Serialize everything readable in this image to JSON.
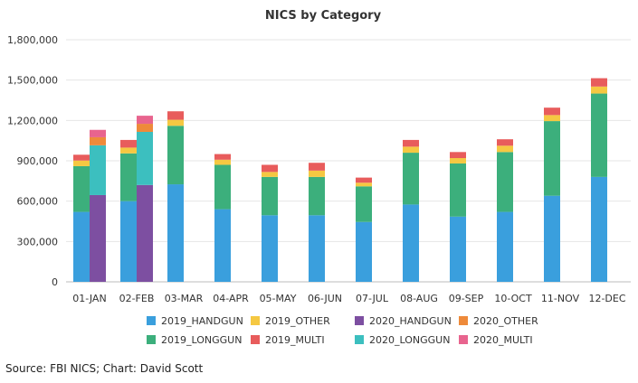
{
  "source": "Source: FBI NICS; Chart: David Scott",
  "chart_data": {
    "type": "bar",
    "stacked": true,
    "title": "NICS by Category",
    "xlabel": "",
    "ylabel": "",
    "ylim": [
      0,
      1800000
    ],
    "yticks": [
      0,
      300000,
      600000,
      900000,
      1200000,
      1500000,
      1800000
    ],
    "ytick_labels": [
      "0",
      "300,000",
      "600,000",
      "900,000",
      "1,200,000",
      "1,500,000",
      "1,800,000"
    ],
    "grid": true,
    "legend_position": "bottom",
    "categories": [
      "01-JAN",
      "02-FEB",
      "03-MAR",
      "04-APR",
      "05-MAY",
      "06-JUN",
      "07-JUL",
      "08-AUG",
      "09-SEP",
      "10-OCT",
      "11-NOV",
      "12-DEC"
    ],
    "groups": [
      {
        "name": "2019",
        "series": [
          {
            "name": "2019_HANDGUN",
            "color": "#3a9fdd",
            "values": [
              520000,
              600000,
              725000,
              540000,
              495000,
              495000,
              445000,
              575000,
              485000,
              520000,
              640000,
              780000
            ]
          },
          {
            "name": "2019_LONGGUN",
            "color": "#3caf7c",
            "values": [
              340000,
              355000,
              435000,
              330000,
              285000,
              285000,
              265000,
              385000,
              395000,
              445000,
              555000,
              620000
            ]
          },
          {
            "name": "2019_OTHER",
            "color": "#f5c842",
            "values": [
              42000,
              43000,
              45000,
              38000,
              37000,
              47000,
              27000,
              45000,
              40000,
              47000,
              45000,
              52000
            ]
          },
          {
            "name": "2019_MULTI",
            "color": "#e85c5c",
            "values": [
              43000,
              57000,
              63000,
              42000,
              53000,
              58000,
              38000,
              50000,
              45000,
              48000,
              55000,
              62000
            ]
          }
        ]
      },
      {
        "name": "2020",
        "series": [
          {
            "name": "2020_HANDGUN",
            "color": "#7d4fa1",
            "values": [
              645000,
              720000,
              null,
              null,
              null,
              null,
              null,
              null,
              null,
              null,
              null,
              null
            ]
          },
          {
            "name": "2020_LONGGUN",
            "color": "#3cbfbf",
            "values": [
              370000,
              395000,
              null,
              null,
              null,
              null,
              null,
              null,
              null,
              null,
              null,
              null
            ]
          },
          {
            "name": "2020_OTHER",
            "color": "#ee8a3a",
            "values": [
              60000,
              60000,
              null,
              null,
              null,
              null,
              null,
              null,
              null,
              null,
              null,
              null
            ]
          },
          {
            "name": "2020_MULTI",
            "color": "#e8648e",
            "values": [
              55000,
              60000,
              null,
              null,
              null,
              null,
              null,
              null,
              null,
              null,
              null,
              null
            ]
          }
        ]
      }
    ],
    "legend": [
      "2019_HANDGUN",
      "2019_OTHER",
      "2020_HANDGUN",
      "2020_OTHER",
      "2019_LONGGUN",
      "2019_MULTI",
      "2020_LONGGUN",
      "2020_MULTI"
    ]
  }
}
